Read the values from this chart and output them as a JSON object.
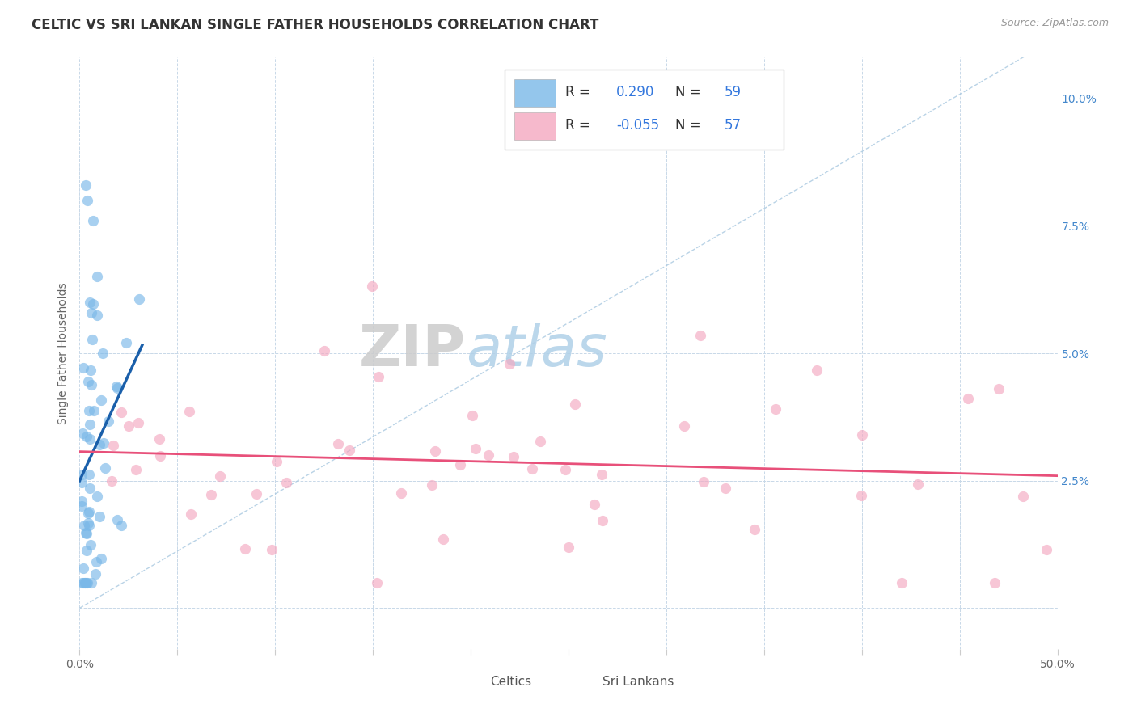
{
  "title": "CELTIC VS SRI LANKAN SINGLE FATHER HOUSEHOLDS CORRELATION CHART",
  "source": "Source: ZipAtlas.com",
  "ylabel": "Single Father Households",
  "xlim": [
    0.0,
    0.5
  ],
  "ylim": [
    -0.008,
    0.108
  ],
  "xticks": [
    0.0,
    0.05,
    0.1,
    0.15,
    0.2,
    0.25,
    0.3,
    0.35,
    0.4,
    0.45,
    0.5
  ],
  "yticks": [
    0.0,
    0.025,
    0.05,
    0.075,
    0.1
  ],
  "ytick_labels_r": [
    "",
    "2.5%",
    "5.0%",
    "7.5%",
    "10.0%"
  ],
  "celtics_R": 0.29,
  "celtics_N": 59,
  "srilankans_R": -0.055,
  "srilankans_N": 57,
  "celtics_color": "#7ab8e8",
  "srilankans_color": "#f4a8c0",
  "celtics_line_color": "#1a5faa",
  "srilankans_line_color": "#e8507a",
  "diag_line_color": "#a8c8e0",
  "background_color": "#ffffff",
  "grid_color": "#c8d8e8",
  "title_fontsize": 12,
  "axis_fontsize": 10,
  "tick_fontsize": 10,
  "legend_fontsize": 12,
  "marker_size": 90
}
